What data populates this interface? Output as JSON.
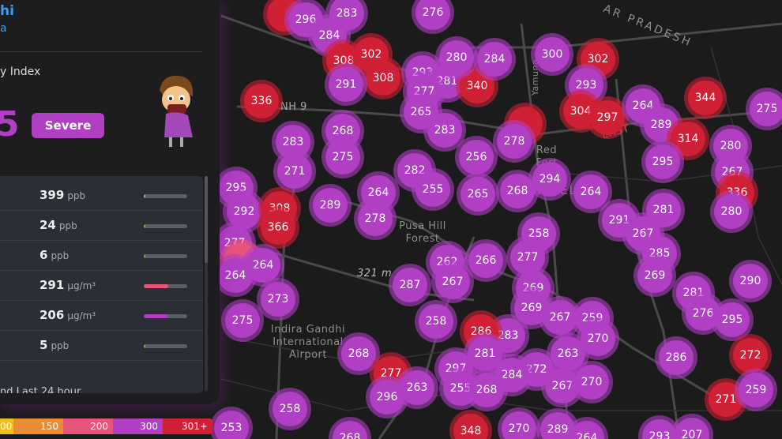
{
  "panel": {
    "city": "hi",
    "country": "a",
    "aqi_label": "y Index",
    "aqi_value": "5",
    "category": "Severe",
    "pollutants": [
      {
        "value": "399",
        "unit": "ppb",
        "level": 0.0,
        "color": "#7ec850"
      },
      {
        "value": "24",
        "unit": "ppb",
        "level": 0.04,
        "color": "#5cc12a"
      },
      {
        "value": "6",
        "unit": "ppb",
        "level": 0.01,
        "color": "#5cc12a"
      },
      {
        "value": "291",
        "unit": "µg/m³",
        "level": 0.57,
        "color": "#e8557a"
      },
      {
        "value": "206",
        "unit": "µg/m³",
        "level": 0.54,
        "color": "#b13fc4"
      },
      {
        "value": "5",
        "unit": "ppb",
        "level": 0.01,
        "color": "#5cc12a"
      }
    ],
    "footer": "nd Last 24 hour"
  },
  "legend": [
    {
      "label": "00",
      "color": "#f0c020"
    },
    {
      "label": "150",
      "color": "#ea8c34"
    },
    {
      "label": "200",
      "color": "#e8557a"
    },
    {
      "label": "300",
      "color": "#b13fc4"
    },
    {
      "label": "301+",
      "color": "#cf2035"
    }
  ],
  "colors": {
    "severe": "#b13fc4",
    "hazardous": "#cf2035"
  },
  "map_labels": {
    "state": "AR PRADESH",
    "highway": "NH 9",
    "fort": "Red Fort",
    "forest": "Pusa Hill Forest",
    "elevation": "321 m",
    "airport": "Indira Gandhi International Airport",
    "city": "W DEL",
    "river": "Yamuna",
    "district": "EAST"
  },
  "markers": [
    {
      "v": ""
    },
    {
      "v": "296"
    },
    {
      "v": "283"
    },
    {
      "v": "276"
    },
    {
      "v": "284"
    },
    {
      "v": "308"
    },
    {
      "v": "302"
    },
    {
      "v": "308"
    },
    {
      "v": "291"
    },
    {
      "v": "293"
    },
    {
      "v": "281"
    },
    {
      "v": "277"
    },
    {
      "v": "340"
    },
    {
      "v": "280"
    },
    {
      "v": "284"
    },
    {
      "v": "300"
    },
    {
      "v": "302"
    },
    {
      "v": "293"
    },
    {
      "v": "304"
    },
    {
      "v": "297"
    },
    {
      "v": "264"
    },
    {
      "v": "289"
    },
    {
      "v": "314"
    },
    {
      "v": "344"
    },
    {
      "v": "275"
    },
    {
      "v": "336"
    },
    {
      "v": "265"
    },
    {
      "v": "283"
    },
    {
      "v": "268"
    },
    {
      "v": "283"
    },
    {
      "v": "275"
    },
    {
      "v": "271"
    },
    {
      "v": ""
    },
    {
      "v": "278"
    },
    {
      "v": "256"
    },
    {
      "v": "282"
    },
    {
      "v": "255"
    },
    {
      "v": "265"
    },
    {
      "v": "268"
    },
    {
      "v": "294"
    },
    {
      "v": "264"
    },
    {
      "v": "295"
    },
    {
      "v": "280"
    },
    {
      "v": "267"
    },
    {
      "v": "336"
    },
    {
      "v": "280"
    },
    {
      "v": "281"
    },
    {
      "v": "291"
    },
    {
      "v": "295"
    },
    {
      "v": "292"
    },
    {
      "v": "308"
    },
    {
      "v": "366"
    },
    {
      "v": "289"
    },
    {
      "v": "264"
    },
    {
      "v": "278"
    },
    {
      "v": "258"
    },
    {
      "v": "267"
    },
    {
      "v": "285"
    },
    {
      "v": "269"
    },
    {
      "v": "277"
    },
    {
      "v": ""
    },
    {
      "v": "264"
    },
    {
      "v": "264"
    },
    {
      "v": "273"
    },
    {
      "v": "262"
    },
    {
      "v": "266"
    },
    {
      "v": "277"
    },
    {
      "v": "287"
    },
    {
      "v": "267"
    },
    {
      "v": "269"
    },
    {
      "v": "269"
    },
    {
      "v": "267"
    },
    {
      "v": "259"
    },
    {
      "v": "270"
    },
    {
      "v": "263"
    },
    {
      "v": "272"
    },
    {
      "v": "267"
    },
    {
      "v": "270"
    },
    {
      "v": "284"
    },
    {
      "v": "283"
    },
    {
      "v": "286"
    },
    {
      "v": "281"
    },
    {
      "v": "258"
    },
    {
      "v": "275"
    },
    {
      "v": "268"
    },
    {
      "v": "277"
    },
    {
      "v": "263"
    },
    {
      "v": "296"
    },
    {
      "v": "297"
    },
    {
      "v": "255"
    },
    {
      "v": "268"
    },
    {
      "v": "281"
    },
    {
      "v": "290"
    },
    {
      "v": "276"
    },
    {
      "v": "295"
    },
    {
      "v": "286"
    },
    {
      "v": "272"
    },
    {
      "v": "271"
    },
    {
      "v": "259"
    },
    {
      "v": "258"
    },
    {
      "v": "253"
    },
    {
      "v": "268"
    },
    {
      "v": "348"
    },
    {
      "v": "270"
    },
    {
      "v": "289"
    },
    {
      "v": "264"
    },
    {
      "v": "293"
    },
    {
      "v": "207"
    }
  ]
}
